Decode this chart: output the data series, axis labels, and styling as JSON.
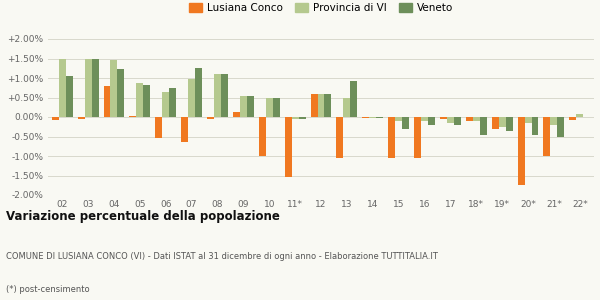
{
  "categories": [
    "02",
    "03",
    "04",
    "05",
    "06",
    "07",
    "08",
    "09",
    "10",
    "11*",
    "12",
    "13",
    "14",
    "15",
    "16",
    "17",
    "18*",
    "19*",
    "20*",
    "21*",
    "22*"
  ],
  "lusiana": [
    -0.08,
    -0.05,
    0.8,
    0.03,
    -0.55,
    -0.65,
    -0.05,
    0.12,
    -1.0,
    -1.55,
    0.6,
    -1.05,
    -0.02,
    -1.05,
    -1.05,
    -0.05,
    -0.1,
    -0.3,
    -1.75,
    -1.0,
    -0.07
  ],
  "provincia": [
    1.5,
    1.5,
    1.45,
    0.88,
    0.65,
    0.97,
    1.1,
    0.55,
    0.5,
    -0.05,
    0.6,
    0.5,
    -0.03,
    -0.1,
    -0.1,
    -0.15,
    -0.1,
    -0.25,
    -0.15,
    -0.2,
    0.07
  ],
  "veneto": [
    1.04,
    1.5,
    1.22,
    0.82,
    0.75,
    1.25,
    1.1,
    0.55,
    0.5,
    -0.05,
    0.58,
    0.92,
    -0.02,
    -0.3,
    -0.2,
    -0.2,
    -0.45,
    -0.35,
    -0.45,
    -0.5,
    0.0
  ],
  "color_lusiana": "#f07820",
  "color_provincia": "#b5c98e",
  "color_veneto": "#6d8f5a",
  "legend_labels": [
    "Lusiana Conco",
    "Provincia di VI",
    "Veneto"
  ],
  "title": "Variazione percentuale della popolazione",
  "footnote1": "COMUNE DI LUSIANA CONCO (VI) - Dati ISTAT al 31 dicembre di ogni anno - Elaborazione TUTTITALIA.IT",
  "footnote2": "(*) post-censimento",
  "ylim": [
    -2.0,
    2.0
  ],
  "ytick_vals": [
    -2.0,
    -1.5,
    -1.0,
    -0.5,
    0.0,
    0.5,
    1.0,
    1.5,
    2.0
  ],
  "ytick_labels": [
    "-2.00%",
    "-1.50%",
    "-1.00%",
    "-0.50%",
    "0.00%",
    "+0.50%",
    "+1.00%",
    "+1.50%",
    "+2.00%"
  ],
  "background_color": "#f9f9f3",
  "grid_color": "#d8d8cc"
}
